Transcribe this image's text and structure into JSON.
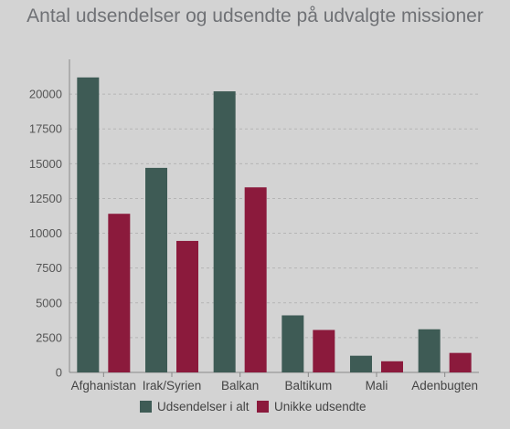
{
  "chart_data": {
    "type": "bar",
    "title": "Antal udsendelser og udsendte på udvalgte missioner",
    "categories": [
      "Afghanistan",
      "Irak/Syrien",
      "Balkan",
      "Baltikum",
      "Mali",
      "Adenbugten"
    ],
    "series": [
      {
        "name": "Udsendelser i alt",
        "color": "#3e5b55",
        "values": [
          21200,
          14700,
          20200,
          4100,
          1200,
          3100
        ]
      },
      {
        "name": "Unikke udsendte",
        "color": "#8b1a3c",
        "values": [
          11400,
          9450,
          13300,
          3050,
          800,
          1400
        ]
      }
    ],
    "ylim": [
      0,
      22500
    ],
    "yticks": [
      0,
      2500,
      5000,
      7500,
      10000,
      12500,
      15000,
      17500,
      20000
    ],
    "ytick_labels": [
      "0",
      "2500",
      "5000",
      "7500",
      "10000",
      "12500",
      "15000",
      "17500",
      "20000"
    ],
    "grid": true,
    "legend_position": "bottom",
    "xlabel": "",
    "ylabel": ""
  }
}
